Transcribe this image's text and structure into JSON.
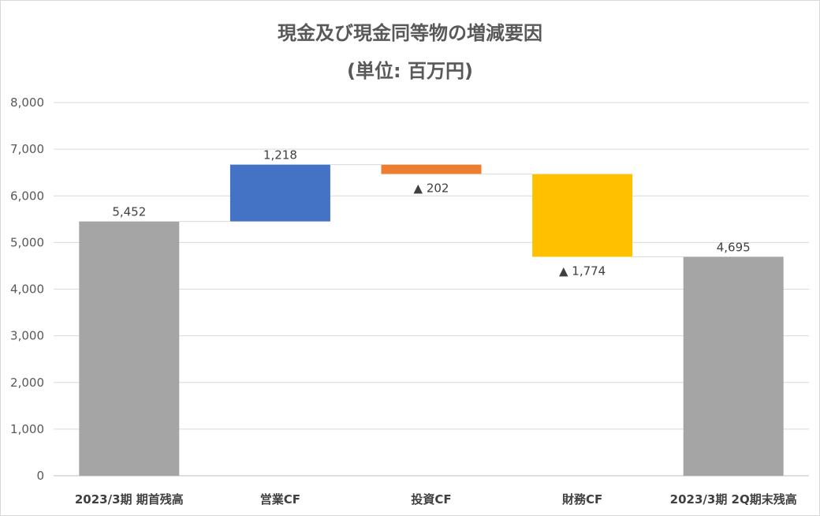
{
  "chart_data": {
    "type": "bar",
    "subtype": "waterfall",
    "title": "現金及び現金同等物の増減要因",
    "subtitle": "(単位: 百万円)",
    "categories": [
      "2023/3期 期首残高",
      "営業CF",
      "投資CF",
      "財務CF",
      "2023/3期 2Q期末残高"
    ],
    "values": [
      5452,
      1218,
      -202,
      -1774,
      4695
    ],
    "bar_kind": [
      "total",
      "delta",
      "delta",
      "delta",
      "total"
    ],
    "data_labels": [
      "5,452",
      "1,218",
      "▲ 202",
      "▲ 1,774",
      "4,695"
    ],
    "colors": [
      "#a5a5a5",
      "#4472c4",
      "#ed7d31",
      "#ffc000",
      "#a5a5a5"
    ],
    "ylim": [
      0,
      8000
    ],
    "yticks": [
      0,
      1000,
      2000,
      3000,
      4000,
      5000,
      6000,
      7000,
      8000
    ],
    "ytick_labels": [
      "0",
      "1,000",
      "2,000",
      "3,000",
      "4,000",
      "5,000",
      "6,000",
      "7,000",
      "8,000"
    ],
    "grid": true,
    "legend": "none",
    "xlabel": "",
    "ylabel": ""
  }
}
